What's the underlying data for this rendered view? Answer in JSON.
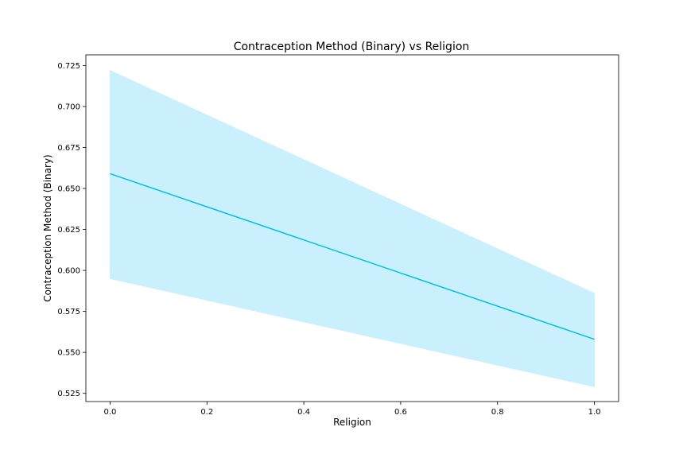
{
  "chart_data": {
    "type": "line",
    "title": "Contraception Method (Binary) vs Religion",
    "xlabel": "Religion",
    "ylabel": "Contraception Method (Binary)",
    "xlim": [
      -0.05,
      1.05
    ],
    "ylim": [
      0.52,
      0.7315
    ],
    "xticks": [
      0.0,
      0.2,
      0.4,
      0.6,
      0.8,
      1.0
    ],
    "xtick_labels": [
      "0.0",
      "0.2",
      "0.4",
      "0.6",
      "0.8",
      "1.0"
    ],
    "yticks": [
      0.525,
      0.55,
      0.575,
      0.6,
      0.625,
      0.65,
      0.675,
      0.7,
      0.725
    ],
    "ytick_labels": [
      "0.525",
      "0.550",
      "0.575",
      "0.600",
      "0.625",
      "0.650",
      "0.675",
      "0.700",
      "0.725"
    ],
    "grid": false,
    "series": [
      {
        "x": [
          0.0,
          1.0
        ],
        "y": [
          0.659,
          0.558
        ],
        "ci_lower": [
          0.595,
          0.529
        ],
        "ci_upper": [
          0.722,
          0.586
        ],
        "line_color": "#00bfe6",
        "band_color": "#c9f0fc"
      }
    ]
  }
}
